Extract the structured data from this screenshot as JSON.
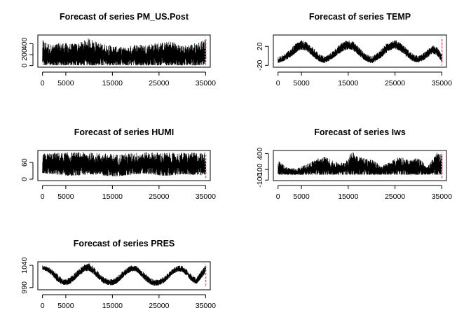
{
  "colors": {
    "series": "#000000",
    "forecast_marker": "#e8303a",
    "forecast_marker_alt": "#c8c8c8",
    "background": "#ffffff"
  },
  "chart_data": [
    {
      "type": "line",
      "title": "Forecast of series PM_US.Post",
      "xlim": [
        -1000,
        36000
      ],
      "ylim": [
        -30,
        560
      ],
      "xticks": [
        0,
        5000,
        15000,
        25000,
        35000
      ],
      "yticks": [
        0,
        200,
        400
      ],
      "x_tick_labels": [
        "0",
        "5000",
        "15000",
        "25000",
        "35000"
      ],
      "y_tick_labels": [
        "0",
        "200",
        "400"
      ],
      "n_points": 35064,
      "forecast_at": 35064,
      "series": [
        {
          "x": [
            0,
            2000,
            4000,
            6000,
            8000,
            10000,
            12000,
            14000,
            16000,
            18000,
            20000,
            22000,
            24000,
            26000,
            28000,
            30000,
            32000,
            34000,
            35064
          ],
          "y_low": [
            5,
            5,
            5,
            5,
            5,
            5,
            5,
            5,
            5,
            5,
            5,
            5,
            5,
            5,
            5,
            5,
            5,
            5,
            5
          ],
          "y_high": [
            470,
            380,
            430,
            400,
            420,
            510,
            420,
            390,
            350,
            330,
            400,
            380,
            420,
            430,
            450,
            360,
            400,
            440,
            500
          ]
        }
      ]
    },
    {
      "type": "line",
      "title": "Forecast of series TEMP",
      "xlim": [
        -1000,
        36000
      ],
      "ylim": [
        -24,
        44
      ],
      "xticks": [
        0,
        5000,
        15000,
        25000,
        35000
      ],
      "yticks": [
        -20,
        20
      ],
      "x_tick_labels": [
        "0",
        "5000",
        "15000",
        "25000",
        "35000"
      ],
      "y_tick_labels": [
        "-20",
        "20"
      ],
      "n_points": 35064,
      "forecast_at": 35064,
      "series": [
        {
          "x": [
            0,
            1000,
            2000,
            3000,
            4000,
            5000,
            6000,
            7000,
            8000,
            9000,
            10000,
            11000,
            12000,
            13000,
            14000,
            15000,
            16000,
            17000,
            18000,
            19000,
            20000,
            21000,
            22000,
            23000,
            24000,
            25000,
            26000,
            27000,
            28000,
            29000,
            30000,
            31000,
            32000,
            33000,
            34000,
            35064
          ],
          "y_low": [
            -15,
            -12,
            -7,
            0,
            8,
            13,
            11,
            3,
            -6,
            -13,
            -15,
            -10,
            -3,
            4,
            11,
            14,
            12,
            3,
            -6,
            -12,
            -16,
            -11,
            -4,
            5,
            12,
            14,
            11,
            3,
            -6,
            -12,
            -14,
            -10,
            -3,
            5,
            1,
            -14
          ],
          "y_high": [
            -2,
            2,
            8,
            18,
            28,
            33,
            30,
            22,
            12,
            3,
            -1,
            4,
            13,
            22,
            31,
            34,
            31,
            22,
            11,
            3,
            -1,
            5,
            14,
            24,
            32,
            34,
            30,
            21,
            11,
            3,
            0,
            5,
            14,
            24,
            18,
            2
          ]
        }
      ]
    },
    {
      "type": "line",
      "title": "Forecast of series HUMI",
      "xlim": [
        -1000,
        36000
      ],
      "ylim": [
        -5,
        103
      ],
      "xticks": [
        0,
        5000,
        15000,
        25000,
        35000
      ],
      "yticks": [
        0,
        60
      ],
      "x_tick_labels": [
        "0",
        "5000",
        "15000",
        "25000",
        "35000"
      ],
      "y_tick_labels": [
        "0",
        "60"
      ],
      "n_points": 35064,
      "forecast_at": 35064,
      "series": [
        {
          "x": [
            0,
            2000,
            4000,
            6000,
            8000,
            10000,
            12000,
            14000,
            16000,
            18000,
            20000,
            22000,
            24000,
            26000,
            28000,
            30000,
            32000,
            34000,
            35064
          ],
          "y_low": [
            22,
            18,
            15,
            12,
            14,
            18,
            16,
            12,
            10,
            14,
            18,
            20,
            16,
            12,
            14,
            18,
            16,
            14,
            18
          ],
          "y_high": [
            92,
            95,
            96,
            97,
            97,
            96,
            94,
            92,
            90,
            93,
            96,
            97,
            97,
            96,
            95,
            96,
            96,
            96,
            95
          ]
        }
      ]
    },
    {
      "type": "line",
      "title": "Forecast of series Iws",
      "xlim": [
        -1000,
        36000
      ],
      "ylim": [
        -110,
        460
      ],
      "xticks": [
        0,
        5000,
        15000,
        25000,
        35000
      ],
      "yticks": [
        -100,
        100,
        400
      ],
      "x_tick_labels": [
        "0",
        "5000",
        "15000",
        "25000",
        "35000"
      ],
      "y_tick_labels": [
        "-100",
        "100",
        "400"
      ],
      "n_points": 35064,
      "forecast_at": 35064,
      "series": [
        {
          "x": [
            0,
            2000,
            4000,
            6000,
            8000,
            10000,
            12000,
            14000,
            16000,
            18000,
            20000,
            22000,
            24000,
            26000,
            28000,
            30000,
            32000,
            34000,
            35064
          ],
          "y_low": [
            1,
            1,
            1,
            1,
            1,
            1,
            1,
            1,
            1,
            1,
            1,
            1,
            1,
            1,
            1,
            1,
            1,
            1,
            1
          ],
          "y_high": [
            270,
            140,
            120,
            200,
            300,
            350,
            250,
            230,
            450,
            330,
            300,
            170,
            250,
            360,
            280,
            320,
            160,
            420,
            440
          ]
        }
      ]
    },
    {
      "type": "line",
      "title": "Forecast of series PRES",
      "xlim": [
        -1000,
        36000
      ],
      "ylim": [
        985,
        1048
      ],
      "xticks": [
        0,
        5000,
        15000,
        25000,
        35000
      ],
      "yticks": [
        990,
        1040
      ],
      "x_tick_labels": [
        "0",
        "5000",
        "15000",
        "25000",
        "35000"
      ],
      "y_tick_labels": [
        "990",
        "1040"
      ],
      "n_points": 35064,
      "forecast_at": 35064,
      "series": [
        {
          "x": [
            0,
            1000,
            2000,
            3000,
            4000,
            5000,
            6000,
            7000,
            8000,
            9000,
            10000,
            11000,
            12000,
            13000,
            14000,
            15000,
            16000,
            17000,
            18000,
            19000,
            20000,
            21000,
            22000,
            23000,
            24000,
            25000,
            26000,
            27000,
            28000,
            29000,
            30000,
            31000,
            32000,
            33000,
            34000,
            35064
          ],
          "y_low": [
            1030,
            1026,
            1018,
            1006,
            998,
            995,
            999,
            1008,
            1018,
            1026,
            1028,
            1020,
            1009,
            1000,
            996,
            995,
            1000,
            1010,
            1020,
            1026,
            1027,
            1018,
            1006,
            998,
            994,
            995,
            1000,
            1010,
            1021,
            1026,
            1026,
            1016,
            1004,
            998,
            1010,
            1024
          ],
          "y_high": [
            1040,
            1038,
            1032,
            1022,
            1013,
            1009,
            1014,
            1024,
            1034,
            1042,
            1045,
            1037,
            1025,
            1015,
            1010,
            1009,
            1014,
            1025,
            1034,
            1040,
            1040,
            1032,
            1022,
            1012,
            1008,
            1009,
            1014,
            1024,
            1034,
            1039,
            1039,
            1030,
            1019,
            1012,
            1026,
            1042
          ]
        }
      ]
    }
  ]
}
